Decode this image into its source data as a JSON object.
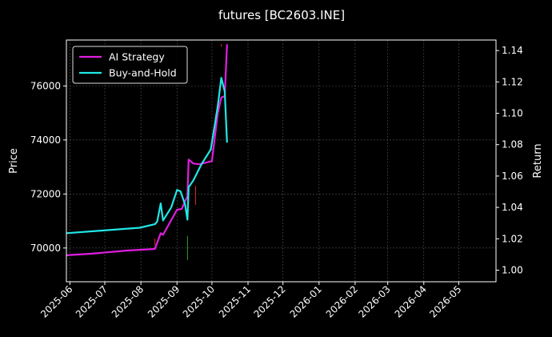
{
  "colors": {
    "background": "#000000",
    "axes": "#ffffff",
    "grid": "#555555",
    "strategy": "#e01ee0",
    "buy_hold": "#22e6e6",
    "candle_up": "#2ca02c",
    "candle_down": "#d62728"
  },
  "chart_data": {
    "type": "line",
    "title": "futures [BC2603.INE]",
    "xlabel": "",
    "ylabel_left": "Price",
    "ylabel_right": "Return",
    "grid": true,
    "legend_position": "top-left",
    "x_ticks": [
      "2025-06",
      "2025-07",
      "2025-08",
      "2025-09",
      "2025-10",
      "2025-11",
      "2025-12",
      "2026-01",
      "2026-02",
      "2026-03",
      "2026-04",
      "2026-05"
    ],
    "xlim": [
      "2025-05-29",
      "2026-06-02"
    ],
    "y_left_ticks": [
      70000,
      72000,
      74000,
      76000
    ],
    "y_left_lim": [
      68750,
      77700
    ],
    "y_right_ticks": [
      1.0,
      1.02,
      1.04,
      1.06,
      1.08,
      1.1,
      1.12,
      1.14
    ],
    "y_right_lim": [
      0.9926,
      1.1467
    ],
    "series": [
      {
        "name": "AI Strategy",
        "axis": "right",
        "color_key": "strategy",
        "points": [
          [
            "2025-05-29",
            1.0095
          ],
          [
            "2025-06-20",
            1.0105
          ],
          [
            "2025-07-20",
            1.0125
          ],
          [
            "2025-08-13",
            1.0135
          ],
          [
            "2025-08-18",
            1.0235
          ],
          [
            "2025-08-20",
            1.0225
          ],
          [
            "2025-09-01",
            1.0385
          ],
          [
            "2025-09-05",
            1.039
          ],
          [
            "2025-09-08",
            1.044
          ],
          [
            "2025-09-10",
            1.047
          ],
          [
            "2025-09-11",
            1.0705
          ],
          [
            "2025-09-15",
            1.068
          ],
          [
            "2025-09-20",
            1.0675
          ],
          [
            "2025-10-01",
            1.0695
          ],
          [
            "2025-10-06",
            1.1
          ],
          [
            "2025-10-09",
            1.11
          ],
          [
            "2025-10-12",
            1.111
          ],
          [
            "2025-10-14",
            1.144
          ]
        ]
      },
      {
        "name": "Buy-and-Hold",
        "axis": "left",
        "color_key": "buy_hold",
        "points": [
          [
            "2025-05-29",
            70550
          ],
          [
            "2025-06-30",
            70650
          ],
          [
            "2025-07-31",
            70750
          ],
          [
            "2025-08-13",
            70880
          ],
          [
            "2025-08-15",
            70980
          ],
          [
            "2025-08-18",
            71650
          ],
          [
            "2025-08-20",
            71020
          ],
          [
            "2025-08-27",
            71500
          ],
          [
            "2025-09-01",
            72150
          ],
          [
            "2025-09-04",
            72100
          ],
          [
            "2025-09-08",
            71600
          ],
          [
            "2025-09-10",
            71050
          ],
          [
            "2025-09-11",
            72250
          ],
          [
            "2025-09-15",
            72500
          ],
          [
            "2025-09-22",
            73100
          ],
          [
            "2025-09-30",
            73650
          ],
          [
            "2025-10-06",
            75250
          ],
          [
            "2025-10-09",
            76300
          ],
          [
            "2025-10-12",
            75800
          ],
          [
            "2025-10-14",
            73900
          ]
        ]
      }
    ],
    "candles": [
      {
        "date": "2025-08-13",
        "low": 70100,
        "high": 70350,
        "dir": "down"
      },
      {
        "date": "2025-09-10",
        "low": 69550,
        "high": 70450,
        "dir": "up"
      },
      {
        "date": "2025-09-17",
        "low": 71600,
        "high": 72300,
        "dir": "down"
      },
      {
        "date": "2025-10-09",
        "low": 77450,
        "high": 77550,
        "dir": "down"
      }
    ]
  }
}
